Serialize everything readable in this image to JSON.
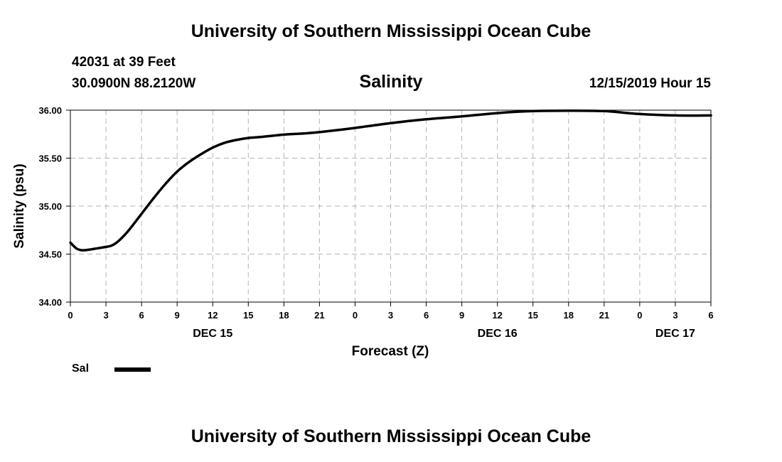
{
  "header": {
    "title": "University of Southern Mississippi Ocean Cube",
    "station": "42031 at 39 Feet",
    "coordinates": "30.0900N 88.2120W",
    "timestamp": "12/15/2019 Hour 15"
  },
  "footer": {
    "title": "University of Southern Mississippi Ocean Cube"
  },
  "legend": {
    "label": "Sal",
    "color": "#000000"
  },
  "chart_data": {
    "type": "line",
    "title": "Salinity",
    "xlabel": "Forecast (Z)",
    "ylabel": "Salinity (psu)",
    "xlim": [
      0,
      54
    ],
    "ylim": [
      34.0,
      36.0
    ],
    "grid": true,
    "x_ticks": [
      0,
      3,
      6,
      9,
      12,
      15,
      18,
      21,
      24,
      27,
      30,
      33,
      36,
      39,
      42,
      45,
      48,
      51,
      54
    ],
    "x_tick_labels": [
      "0",
      "3",
      "6",
      "9",
      "12",
      "15",
      "18",
      "21",
      "0",
      "3",
      "6",
      "9",
      "12",
      "15",
      "18",
      "21",
      "0",
      "3",
      "6"
    ],
    "y_ticks": [
      34.0,
      34.5,
      35.0,
      35.5,
      36.0
    ],
    "y_tick_labels": [
      "34.00",
      "34.50",
      "35.00",
      "35.50",
      "36.00"
    ],
    "date_labels": [
      {
        "x": 12,
        "label": "DEC 15"
      },
      {
        "x": 36,
        "label": "DEC 16"
      },
      {
        "x": 51,
        "label": "DEC 17"
      }
    ],
    "series": [
      {
        "name": "Sal",
        "color": "#000000",
        "x": [
          0,
          0.5,
          1,
          1.5,
          2,
          3,
          3.5,
          4,
          4.5,
          5,
          6,
          7,
          8,
          9,
          10,
          11,
          12,
          13,
          14,
          15,
          16,
          18,
          20,
          22,
          24,
          27,
          30,
          33,
          36,
          39,
          42,
          45,
          48,
          51,
          54
        ],
        "values": [
          34.62,
          34.56,
          34.54,
          34.545,
          34.555,
          34.575,
          34.59,
          34.63,
          34.69,
          34.76,
          34.92,
          35.08,
          35.23,
          35.36,
          35.46,
          35.54,
          35.61,
          35.66,
          35.69,
          35.71,
          35.72,
          35.745,
          35.76,
          35.785,
          35.815,
          35.865,
          35.905,
          35.935,
          35.97,
          35.99,
          35.995,
          35.99,
          35.96,
          35.945,
          35.945
        ]
      }
    ]
  }
}
